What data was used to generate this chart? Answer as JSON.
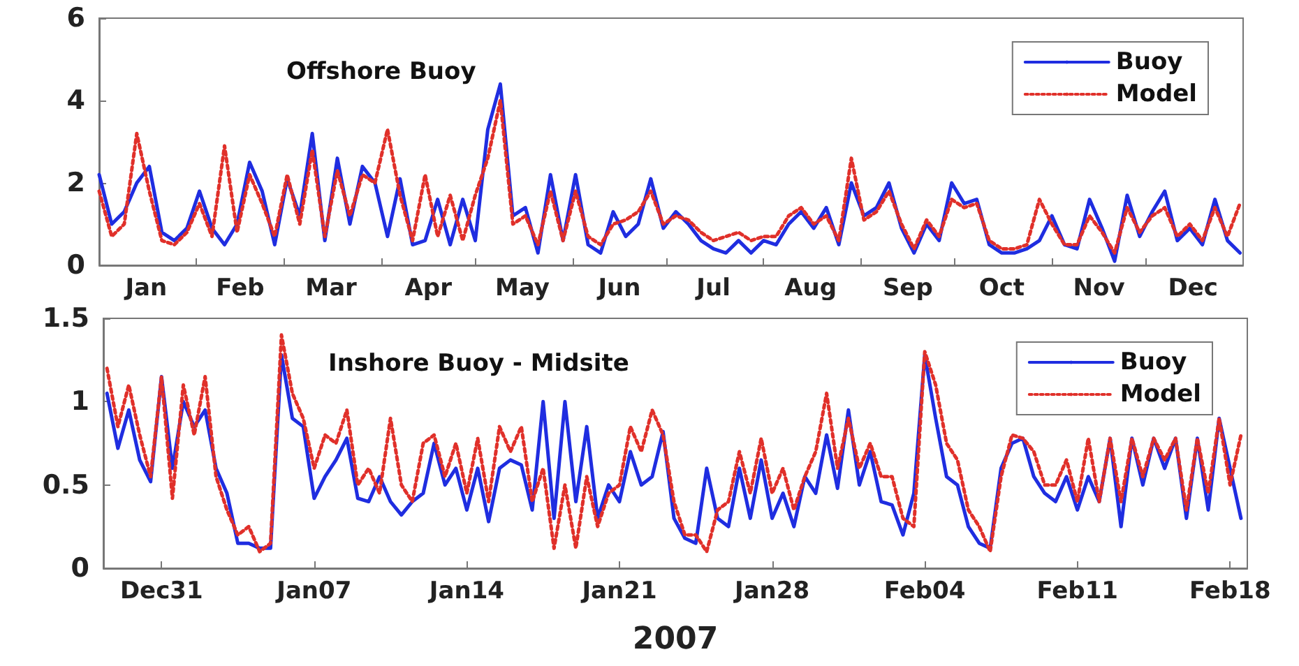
{
  "chart_data": [
    {
      "type": "line",
      "title": "Offshore Buoy",
      "legend": "top right",
      "marker": "none",
      "x": [
        "2007-01-01",
        "2007-01-05",
        "2007-01-09",
        "2007-01-13",
        "2007-01-17",
        "2007-01-21",
        "2007-01-25",
        "2007-01-29",
        "2007-02-02",
        "2007-02-06",
        "2007-02-10",
        "2007-02-14",
        "2007-02-18",
        "2007-02-22",
        "2007-02-26",
        "2007-03-02",
        "2007-03-06",
        "2007-03-10",
        "2007-03-14",
        "2007-03-18",
        "2007-03-22",
        "2007-03-26",
        "2007-03-30",
        "2007-04-03",
        "2007-04-07",
        "2007-04-11",
        "2007-04-15",
        "2007-04-19",
        "2007-04-23",
        "2007-04-27",
        "2007-05-01",
        "2007-05-05",
        "2007-05-09",
        "2007-05-13",
        "2007-05-17",
        "2007-05-21",
        "2007-05-25",
        "2007-05-29",
        "2007-06-02",
        "2007-06-06",
        "2007-06-10",
        "2007-06-14",
        "2007-06-18",
        "2007-06-22",
        "2007-06-26",
        "2007-06-30",
        "2007-07-04",
        "2007-07-08",
        "2007-07-12",
        "2007-07-16",
        "2007-07-20",
        "2007-07-24",
        "2007-07-28",
        "2007-08-01",
        "2007-08-05",
        "2007-08-09",
        "2007-08-13",
        "2007-08-17",
        "2007-08-21",
        "2007-08-25",
        "2007-08-29",
        "2007-09-02",
        "2007-09-06",
        "2007-09-10",
        "2007-09-14",
        "2007-09-18",
        "2007-09-22",
        "2007-09-26",
        "2007-09-30",
        "2007-10-04",
        "2007-10-08",
        "2007-10-12",
        "2007-10-16",
        "2007-10-20",
        "2007-10-24",
        "2007-10-28",
        "2007-11-01",
        "2007-11-05",
        "2007-11-09",
        "2007-11-13",
        "2007-11-17",
        "2007-11-21",
        "2007-11-25",
        "2007-11-29",
        "2007-12-03",
        "2007-12-07",
        "2007-12-11",
        "2007-12-15",
        "2007-12-19",
        "2007-12-23",
        "2007-12-27",
        "2007-12-31"
      ],
      "xlim": [
        "2007-01-01",
        "2008-01-01"
      ],
      "xticks": [
        {
          "value": "2007-01-16",
          "label": "Jan"
        },
        {
          "value": "2007-02-01",
          "label": null
        },
        {
          "value": "2007-02-15",
          "label": "Feb"
        },
        {
          "value": "2007-03-01",
          "label": null
        },
        {
          "value": "2007-03-16",
          "label": "Mar"
        },
        {
          "value": "2007-04-01",
          "label": null
        },
        {
          "value": "2007-04-16",
          "label": "Apr"
        },
        {
          "value": "2007-05-01",
          "label": null
        },
        {
          "value": "2007-05-16",
          "label": "May"
        },
        {
          "value": "2007-06-01",
          "label": null
        },
        {
          "value": "2007-06-16",
          "label": "Jun"
        },
        {
          "value": "2007-07-01",
          "label": null
        },
        {
          "value": "2007-07-16",
          "label": "Jul"
        },
        {
          "value": "2007-08-01",
          "label": null
        },
        {
          "value": "2007-08-16",
          "label": "Aug"
        },
        {
          "value": "2007-09-01",
          "label": null
        },
        {
          "value": "2007-09-16",
          "label": "Sep"
        },
        {
          "value": "2007-10-01",
          "label": null
        },
        {
          "value": "2007-10-16",
          "label": "Oct"
        },
        {
          "value": "2007-11-01",
          "label": null
        },
        {
          "value": "2007-11-16",
          "label": "Nov"
        },
        {
          "value": "2007-12-01",
          "label": null
        },
        {
          "value": "2007-12-16",
          "label": "Dec"
        }
      ],
      "ylim": [
        0,
        6
      ],
      "yticks": [
        0,
        2,
        4,
        6
      ],
      "series": [
        {
          "name": "Buoy",
          "color": "#1f2de0",
          "line_style": "solid",
          "values": [
            2.2,
            1.0,
            1.3,
            2.0,
            2.4,
            0.8,
            0.6,
            0.9,
            1.8,
            0.9,
            0.5,
            1.0,
            2.5,
            1.8,
            0.5,
            2.1,
            1.2,
            3.2,
            0.6,
            2.6,
            1.0,
            2.4,
            2.0,
            0.7,
            2.1,
            0.5,
            0.6,
            1.6,
            0.5,
            1.6,
            0.6,
            3.3,
            4.4,
            1.2,
            1.4,
            0.3,
            2.2,
            0.6,
            2.2,
            0.5,
            0.3,
            1.3,
            0.7,
            1.0,
            2.1,
            0.9,
            1.3,
            1.0,
            0.6,
            0.4,
            0.3,
            0.6,
            0.3,
            0.6,
            0.5,
            1.0,
            1.3,
            0.9,
            1.4,
            0.5,
            2.0,
            1.2,
            1.4,
            2.0,
            0.9,
            0.3,
            1.0,
            0.6,
            2.0,
            1.5,
            1.6,
            0.5,
            0.3,
            0.3,
            0.4,
            0.6,
            1.2,
            0.5,
            0.4,
            1.6,
            0.9,
            0.1,
            1.7,
            0.7,
            1.3,
            1.8,
            0.6,
            0.9,
            0.5,
            1.6,
            0.6,
            0.3
          ]
        },
        {
          "name": "Model",
          "color": "#e0302a",
          "line_style": "dotted",
          "values": [
            1.8,
            0.7,
            1.0,
            3.2,
            1.8,
            0.6,
            0.5,
            0.8,
            1.5,
            0.7,
            2.9,
            0.8,
            2.2,
            1.5,
            0.7,
            2.2,
            1.0,
            2.8,
            0.7,
            2.3,
            1.2,
            2.2,
            2.0,
            3.3,
            1.7,
            0.6,
            2.2,
            0.7,
            1.7,
            0.6,
            1.7,
            2.6,
            4.0,
            1.0,
            1.2,
            0.5,
            1.8,
            0.6,
            1.8,
            0.7,
            0.5,
            1.0,
            1.1,
            1.3,
            1.8,
            1.0,
            1.2,
            1.1,
            0.8,
            0.6,
            0.7,
            0.8,
            0.6,
            0.7,
            0.7,
            1.2,
            1.4,
            1.0,
            1.2,
            0.6,
            2.6,
            1.1,
            1.3,
            1.8,
            1.0,
            0.4,
            1.1,
            0.7,
            1.6,
            1.4,
            1.5,
            0.6,
            0.4,
            0.4,
            0.5,
            1.6,
            1.0,
            0.5,
            0.5,
            1.2,
            0.8,
            0.3,
            1.4,
            0.8,
            1.2,
            1.4,
            0.7,
            1.0,
            0.6,
            1.4,
            0.7,
            1.5
          ]
        }
      ]
    },
    {
      "type": "line",
      "title": "Inshore Buoy - Midsite",
      "xlabel": "2007",
      "legend": "top right",
      "marker": "none",
      "x": [
        "2006-12-28T12:00",
        "2006-12-29T00:00",
        "2006-12-29T12:00",
        "2006-12-30T00:00",
        "2006-12-30T12:00",
        "2006-12-31T00:00",
        "2006-12-31T12:00",
        "2007-01-01T00:00",
        "2007-01-01T12:00",
        "2007-01-02T00:00",
        "2007-01-02T12:00",
        "2007-01-03T00:00",
        "2007-01-03T12:00",
        "2007-01-04T00:00",
        "2007-01-04T12:00",
        "2007-01-05T00:00",
        "2007-01-05T12:00",
        "2007-01-06T00:00",
        "2007-01-06T12:00",
        "2007-01-07T00:00",
        "2007-01-07T12:00",
        "2007-01-08T00:00",
        "2007-01-08T12:00",
        "2007-01-09T00:00",
        "2007-01-09T12:00",
        "2007-01-10T00:00",
        "2007-01-10T12:00",
        "2007-01-11T00:00",
        "2007-01-11T12:00",
        "2007-01-12T00:00",
        "2007-01-12T12:00",
        "2007-01-13T00:00",
        "2007-01-13T12:00",
        "2007-01-14T00:00",
        "2007-01-14T12:00",
        "2007-01-15T00:00",
        "2007-01-15T12:00",
        "2007-01-16T00:00",
        "2007-01-16T12:00",
        "2007-01-17T00:00",
        "2007-01-17T12:00",
        "2007-01-18T00:00",
        "2007-01-18T12:00",
        "2007-01-19T00:00",
        "2007-01-19T12:00",
        "2007-01-20T00:00",
        "2007-01-20T12:00",
        "2007-01-21T00:00",
        "2007-01-21T12:00",
        "2007-01-22T00:00",
        "2007-01-22T12:00",
        "2007-01-23T00:00",
        "2007-01-23T12:00",
        "2007-01-24T00:00",
        "2007-01-24T12:00",
        "2007-01-25T00:00",
        "2007-01-25T12:00",
        "2007-01-26T00:00",
        "2007-01-26T12:00",
        "2007-01-27T00:00",
        "2007-01-27T12:00",
        "2007-01-28T00:00",
        "2007-01-28T12:00",
        "2007-01-29T00:00",
        "2007-01-29T12:00",
        "2007-01-30T00:00",
        "2007-01-30T12:00",
        "2007-01-31T00:00",
        "2007-01-31T12:00",
        "2007-02-01T00:00",
        "2007-02-01T12:00",
        "2007-02-02T00:00",
        "2007-02-02T12:00",
        "2007-02-03T00:00",
        "2007-02-03T12:00",
        "2007-02-04T00:00",
        "2007-02-04T12:00",
        "2007-02-05T00:00",
        "2007-02-05T12:00",
        "2007-02-06T00:00",
        "2007-02-06T12:00",
        "2007-02-07T00:00",
        "2007-02-07T12:00",
        "2007-02-08T00:00",
        "2007-02-08T12:00",
        "2007-02-09T00:00",
        "2007-02-09T12:00",
        "2007-02-10T00:00",
        "2007-02-10T12:00",
        "2007-02-11T00:00",
        "2007-02-11T12:00",
        "2007-02-12T00:00",
        "2007-02-12T12:00",
        "2007-02-13T00:00",
        "2007-02-13T12:00",
        "2007-02-14T00:00",
        "2007-02-14T12:00",
        "2007-02-15T00:00",
        "2007-02-15T12:00",
        "2007-02-16T00:00",
        "2007-02-16T12:00",
        "2007-02-17T00:00",
        "2007-02-17T12:00",
        "2007-02-18T00:00",
        "2007-02-18T12:00"
      ],
      "xlim": [
        "2006-12-28T08:00",
        "2007-02-18T19:00"
      ],
      "xticks": [
        {
          "value": "2006-12-31",
          "label": "Dec31"
        },
        {
          "value": "2007-01-07",
          "label": "Jan07"
        },
        {
          "value": "2007-01-14",
          "label": "Jan14"
        },
        {
          "value": "2007-01-21",
          "label": "Jan21"
        },
        {
          "value": "2007-01-28",
          "label": "Jan28"
        },
        {
          "value": "2007-02-04",
          "label": "Feb04"
        },
        {
          "value": "2007-02-11",
          "label": "Feb11"
        },
        {
          "value": "2007-02-18",
          "label": "Feb18"
        }
      ],
      "ylim": [
        0,
        1.5
      ],
      "yticks": [
        0,
        0.5,
        1,
        1.5
      ],
      "series": [
        {
          "name": "Buoy",
          "color": "#1f2de0",
          "line_style": "solid",
          "values": [
            1.05,
            0.72,
            0.95,
            0.65,
            0.52,
            1.15,
            0.6,
            1.0,
            0.85,
            0.95,
            0.6,
            0.45,
            0.15,
            0.15,
            0.12,
            0.12,
            1.28,
            0.9,
            0.85,
            0.42,
            0.55,
            0.65,
            0.78,
            0.42,
            0.4,
            0.55,
            0.4,
            0.32,
            0.4,
            0.45,
            0.75,
            0.5,
            0.6,
            0.35,
            0.6,
            0.28,
            0.6,
            0.65,
            0.62,
            0.35,
            1.0,
            0.3,
            1.0,
            0.4,
            0.85,
            0.3,
            0.5,
            0.4,
            0.7,
            0.5,
            0.55,
            0.82,
            0.3,
            0.18,
            0.15,
            0.6,
            0.3,
            0.25,
            0.6,
            0.3,
            0.65,
            0.3,
            0.45,
            0.25,
            0.55,
            0.45,
            0.8,
            0.48,
            0.95,
            0.5,
            0.7,
            0.4,
            0.38,
            0.2,
            0.45,
            1.28,
            0.9,
            0.55,
            0.5,
            0.25,
            0.15,
            0.12,
            0.6,
            0.75,
            0.78,
            0.55,
            0.45,
            0.4,
            0.55,
            0.35,
            0.55,
            0.4,
            0.78,
            0.25,
            0.78,
            0.5,
            0.78,
            0.6,
            0.78,
            0.3,
            0.78,
            0.35,
            0.9,
            0.6,
            0.3
          ]
        },
        {
          "name": "Model",
          "color": "#e0302a",
          "line_style": "dotted",
          "values": [
            1.2,
            0.85,
            1.1,
            0.8,
            0.55,
            1.15,
            0.42,
            1.1,
            0.8,
            1.15,
            0.55,
            0.35,
            0.2,
            0.25,
            0.1,
            0.15,
            1.4,
            1.05,
            0.9,
            0.6,
            0.8,
            0.75,
            0.95,
            0.5,
            0.6,
            0.45,
            0.9,
            0.5,
            0.4,
            0.75,
            0.8,
            0.55,
            0.75,
            0.45,
            0.78,
            0.4,
            0.85,
            0.7,
            0.85,
            0.4,
            0.6,
            0.12,
            0.5,
            0.12,
            0.55,
            0.25,
            0.45,
            0.5,
            0.85,
            0.7,
            0.95,
            0.8,
            0.4,
            0.2,
            0.2,
            0.1,
            0.35,
            0.4,
            0.7,
            0.45,
            0.78,
            0.45,
            0.6,
            0.35,
            0.55,
            0.7,
            1.05,
            0.6,
            0.9,
            0.6,
            0.75,
            0.55,
            0.55,
            0.3,
            0.25,
            1.3,
            1.1,
            0.75,
            0.65,
            0.35,
            0.25,
            0.1,
            0.55,
            0.8,
            0.78,
            0.7,
            0.5,
            0.5,
            0.65,
            0.4,
            0.78,
            0.4,
            0.78,
            0.4,
            0.78,
            0.55,
            0.78,
            0.65,
            0.78,
            0.35,
            0.78,
            0.45,
            0.9,
            0.5,
            0.8
          ]
        }
      ]
    }
  ]
}
